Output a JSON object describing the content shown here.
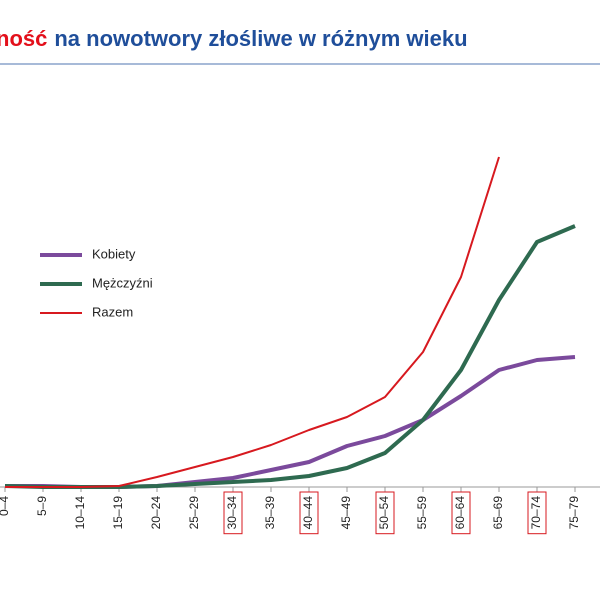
{
  "chart_data": {
    "type": "line",
    "title_parts": [
      {
        "text": "ność",
        "color": "#e3101b"
      },
      {
        "text": "na nowotwory złośliwe w różnym wieku",
        "color": "#1f4e9a"
      }
    ],
    "categories": [
      "0–4",
      "5–9",
      "10–14",
      "15–19",
      "20–24",
      "25–29",
      "30–34",
      "35–39",
      "40–44",
      "45–49",
      "50–54",
      "55–59",
      "60–64",
      "65–69",
      "70–74",
      "75–79"
    ],
    "highlight": [
      6,
      8,
      10,
      12,
      14
    ],
    "ylim": [
      0,
      400
    ],
    "series": [
      {
        "name": "Kobiety",
        "color": "#7b4a9c",
        "values": [
          1,
          1,
          0,
          0,
          1,
          5,
          9,
          17,
          25,
          41,
          51,
          67,
          91,
          117,
          127,
          130
        ]
      },
      {
        "name": "Mężczyźni",
        "color": "#2e6a50",
        "values": [
          1,
          0,
          0,
          0,
          1,
          3,
          5,
          7,
          11,
          19,
          34,
          67,
          117,
          187,
          245,
          261
        ]
      },
      {
        "name": "Razem",
        "color": "#d7191f",
        "values": [
          0,
          0,
          0,
          1,
          10,
          20,
          30,
          42,
          57,
          70,
          90,
          135,
          210,
          330,
          null,
          null
        ]
      }
    ]
  }
}
